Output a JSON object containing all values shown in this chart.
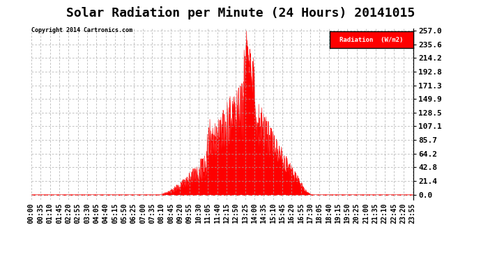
{
  "title": "Solar Radiation per Minute (24 Hours) 20141015",
  "copyright": "Copyright 2014 Cartronics.com",
  "legend_label": "Radiation  (W/m2)",
  "yticks": [
    0.0,
    21.4,
    42.8,
    64.2,
    85.7,
    107.1,
    128.5,
    149.9,
    171.3,
    192.8,
    214.2,
    235.6,
    257.0
  ],
  "ymax": 257.0,
  "ymin": 0.0,
  "background_color": "#ffffff",
  "plot_bg_color": "#ffffff",
  "grid_color": "#aaaaaa",
  "fill_color": "#ff0000",
  "title_fontsize": 13,
  "axis_fontsize": 7,
  "tick_interval_min": 35
}
